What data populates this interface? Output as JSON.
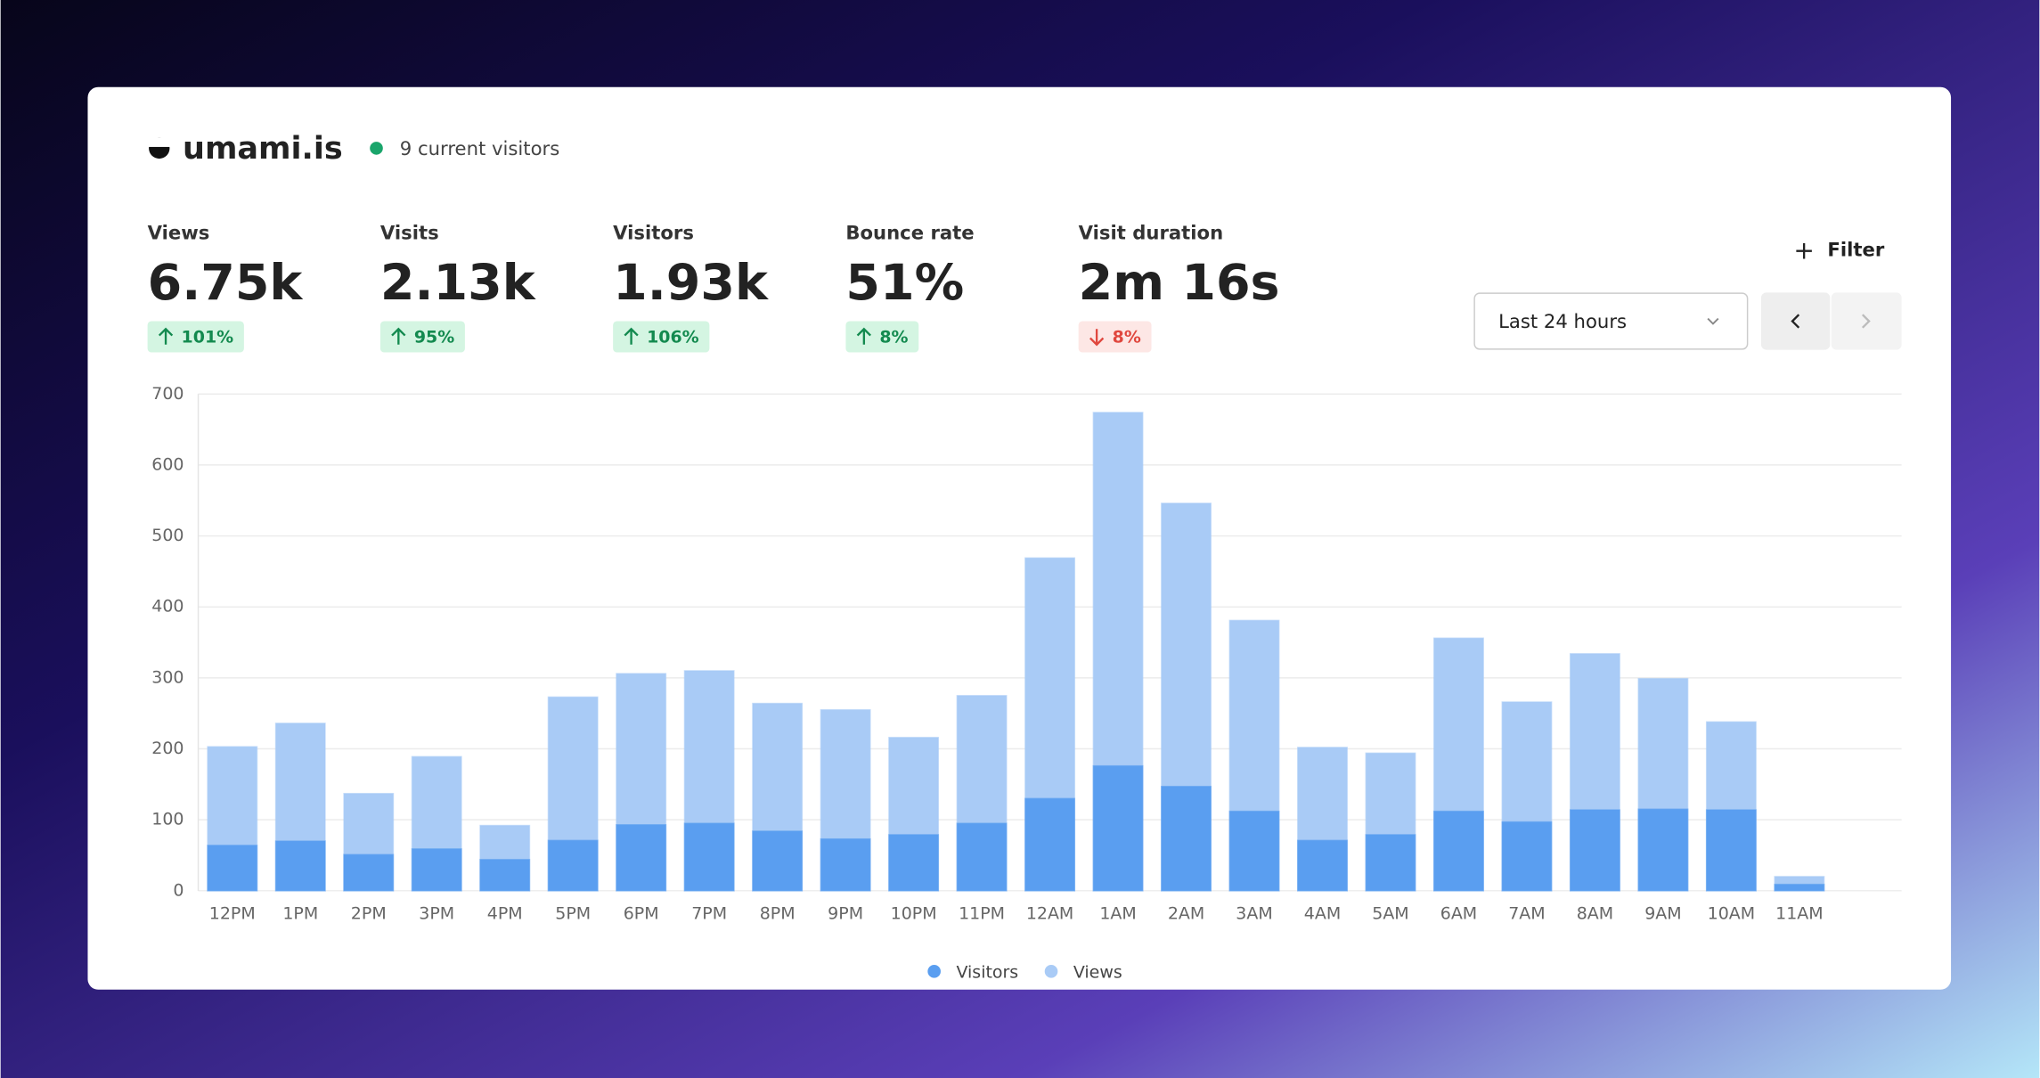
{
  "header": {
    "site": "umami.is",
    "current_visitors": "9 current visitors"
  },
  "stats": [
    {
      "label": "Views",
      "value": "6.75k",
      "change": "101%",
      "trend": "up"
    },
    {
      "label": "Visits",
      "value": "2.13k",
      "change": "95%",
      "trend": "up"
    },
    {
      "label": "Visitors",
      "value": "1.93k",
      "change": "106%",
      "trend": "up"
    },
    {
      "label": "Bounce rate",
      "value": "51%",
      "change": "8%",
      "trend": "up"
    },
    {
      "label": "Visit duration",
      "value": "2m 16s",
      "change": "8%",
      "trend": "down"
    }
  ],
  "controls": {
    "filter": "Filter",
    "range": "Last 24 hours"
  },
  "chart_data": {
    "type": "bar",
    "categories": [
      "12PM",
      "1PM",
      "2PM",
      "3PM",
      "4PM",
      "5PM",
      "6PM",
      "7PM",
      "8PM",
      "9PM",
      "10PM",
      "11PM",
      "12AM",
      "1AM",
      "2AM",
      "3AM",
      "4AM",
      "5AM",
      "6AM",
      "7AM",
      "8AM",
      "9AM",
      "10AM",
      "11AM"
    ],
    "series": [
      {
        "name": "Visitors",
        "color": "#5a9ef0",
        "values": [
          64,
          70,
          51,
          59,
          44,
          71,
          93,
          95,
          84,
          73,
          79,
          95,
          130,
          176,
          147,
          112,
          71,
          79,
          112,
          97,
          114,
          115,
          114,
          9
        ]
      },
      {
        "name": "Views",
        "color": "#a9cbf6",
        "values": [
          203,
          236,
          137,
          189,
          92,
          273,
          306,
          310,
          264,
          255,
          216,
          275,
          469,
          674,
          546,
          381,
          202,
          194,
          356,
          266,
          334,
          299,
          238,
          20
        ]
      }
    ],
    "ylim": [
      0,
      700
    ],
    "yticks": [
      0,
      100,
      200,
      300,
      400,
      500,
      600,
      700
    ],
    "grid": true
  }
}
